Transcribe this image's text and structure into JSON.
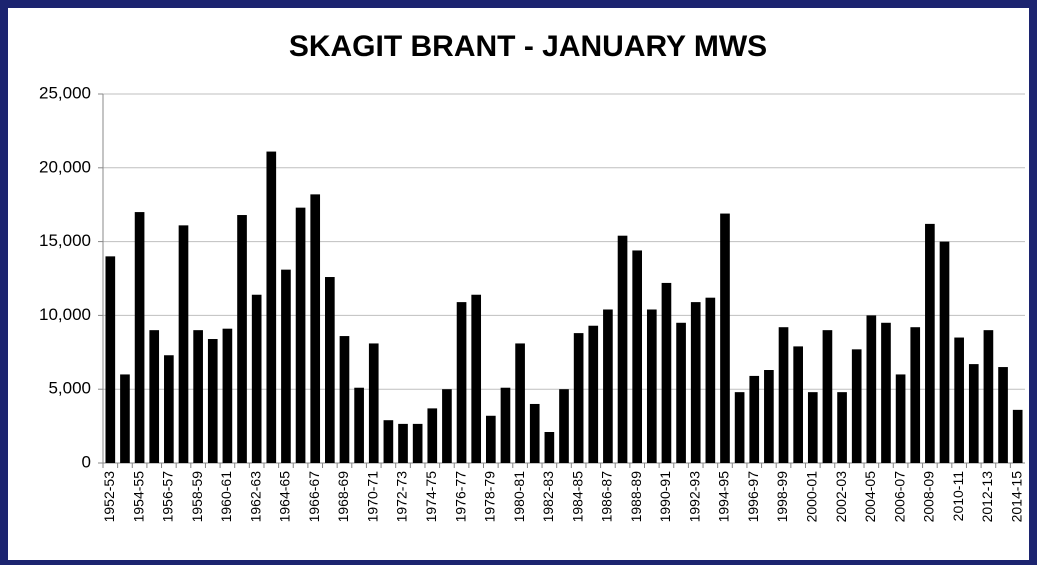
{
  "chart_data": {
    "type": "bar",
    "title": "SKAGIT BRANT - JANUARY MWS",
    "categories": [
      "1952-53",
      null,
      "1954-55",
      null,
      "1956-57",
      null,
      "1958-59",
      null,
      "1960-61",
      null,
      "1962-63",
      null,
      "1964-65",
      null,
      "1966-67",
      null,
      "1968-69",
      null,
      "1970-71",
      null,
      "1972-73",
      null,
      "1974-75",
      null,
      "1976-77",
      null,
      "1978-79",
      null,
      "1980-81",
      null,
      "1982-83",
      null,
      "1984-85",
      null,
      "1986-87",
      null,
      "1988-89",
      null,
      "1990-91",
      null,
      "1992-93",
      null,
      "1994-95",
      null,
      "1996-97",
      null,
      "1998-99",
      null,
      "2000-01",
      null,
      "2002-03",
      null,
      "2004-05",
      null,
      "2006-07",
      null,
      "2008-09",
      null,
      "2010-11",
      null,
      "2012-13",
      null,
      "2014-15"
    ],
    "values": [
      14000,
      6000,
      17000,
      9000,
      7300,
      16100,
      9000,
      8400,
      9100,
      16800,
      11400,
      21100,
      13100,
      17300,
      18200,
      12600,
      8600,
      5100,
      8100,
      2900,
      2650,
      2650,
      3700,
      5000,
      10900,
      11400,
      3200,
      5100,
      8100,
      4000,
      2100,
      5000,
      8800,
      9300,
      10400,
      15400,
      14400,
      10400,
      12200,
      9500,
      10900,
      11200,
      16900,
      4800,
      5900,
      6300,
      9200,
      7900,
      4800,
      9000,
      4800,
      7700,
      10000,
      9500,
      6000,
      9200,
      16200,
      15000,
      8500,
      6700,
      9000,
      6500,
      3600
    ],
    "color": "#000000",
    "ylim": [
      0,
      25000
    ],
    "yticks": [
      0,
      {
        "value": 5000,
        "label": "5,000"
      },
      {
        "value": 10000,
        "label": "10,000"
      },
      {
        "value": 15000,
        "label": "15,000"
      },
      {
        "value": 20000,
        "label": "20,000"
      },
      {
        "value": 25000,
        "label": "25,000"
      }
    ],
    "grid": true
  }
}
